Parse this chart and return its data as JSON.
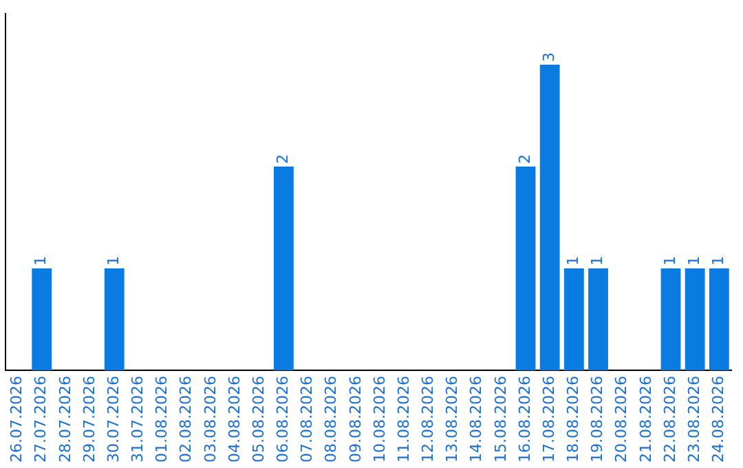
{
  "chart_data": {
    "type": "bar",
    "categories": [
      "26.07.2026",
      "27.07.2026",
      "28.07.2026",
      "29.07.2026",
      "30.07.2026",
      "31.07.2026",
      "01.08.2026",
      "02.08.2026",
      "03.08.2026",
      "04.08.2026",
      "05.08.2026",
      "06.08.2026",
      "07.08.2026",
      "08.08.2026",
      "09.08.2026",
      "10.08.2026",
      "11.08.2026",
      "12.08.2026",
      "13.08.2026",
      "14.08.2026",
      "15.08.2026",
      "16.08.2026",
      "17.08.2026",
      "18.08.2026",
      "19.08.2026",
      "20.08.2026",
      "21.08.2026",
      "22.08.2026",
      "23.08.2026",
      "24.08.2026"
    ],
    "values": [
      0,
      1,
      0,
      0,
      1,
      0,
      0,
      0,
      0,
      0,
      0,
      2,
      0,
      0,
      0,
      0,
      0,
      0,
      0,
      0,
      0,
      2,
      3,
      1,
      1,
      0,
      0,
      1,
      1,
      1
    ],
    "value_labels": [
      null,
      "1",
      null,
      null,
      "1",
      null,
      null,
      null,
      null,
      null,
      null,
      "2",
      null,
      null,
      null,
      null,
      null,
      null,
      null,
      null,
      null,
      "2",
      "3",
      "1",
      "1",
      null,
      null,
      "1",
      "1",
      "1"
    ],
    "color": "#0a7be0",
    "grid": false,
    "legend": false
  }
}
